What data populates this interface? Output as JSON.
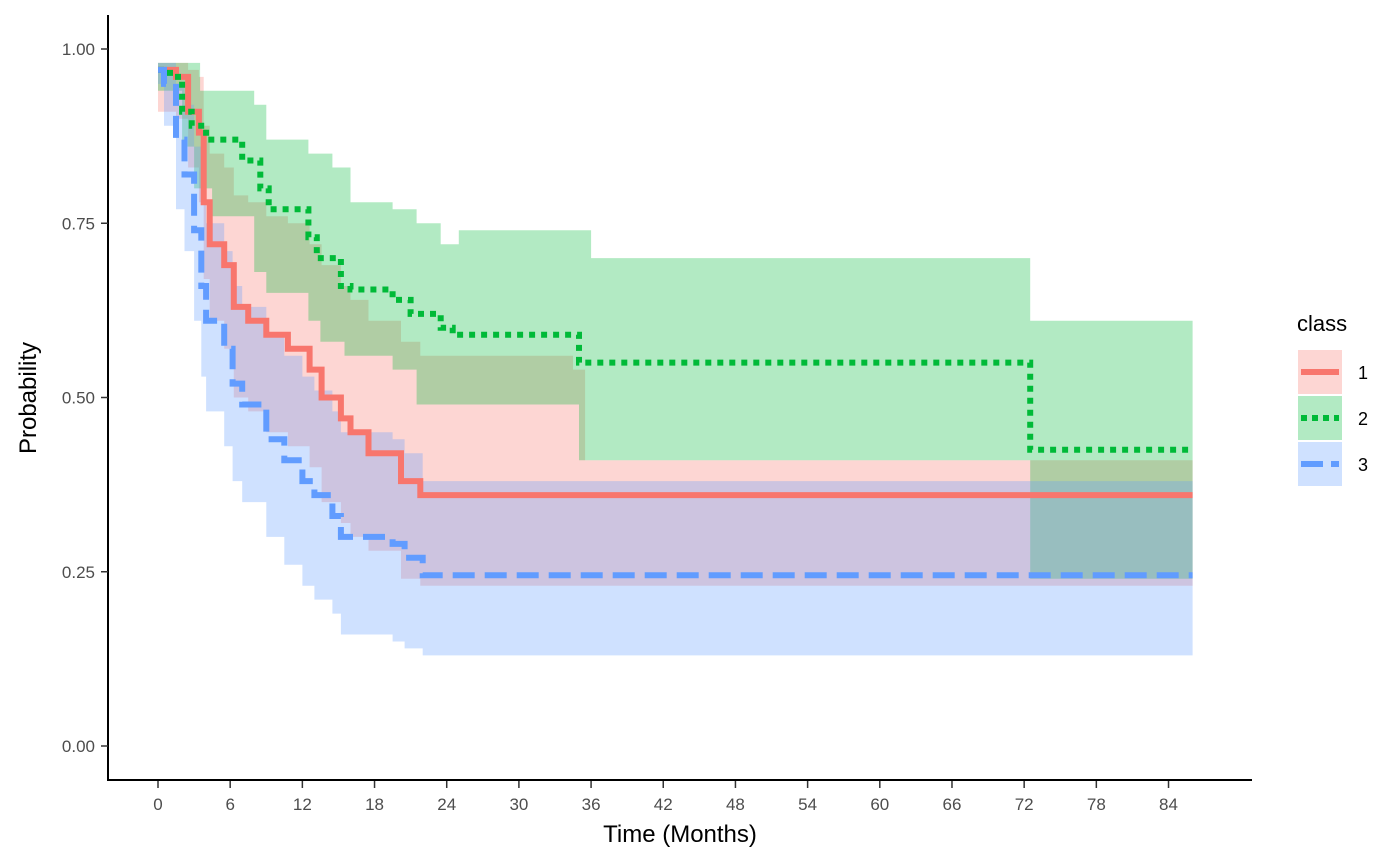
{
  "chart_data": {
    "type": "line",
    "subtype": "kaplan-meier survival curve with confidence bands",
    "xlabel": "Time (Months)",
    "ylabel": "Probability",
    "xlim": [
      -7,
      88
    ],
    "ylim": [
      -0.05,
      1.05
    ],
    "xticks": [
      0,
      6,
      12,
      18,
      24,
      30,
      36,
      42,
      48,
      54,
      60,
      66,
      72,
      78,
      84
    ],
    "yticks": [
      0,
      0.25,
      0.5,
      0.75,
      1.0
    ],
    "ytick_labels": [
      "0.00",
      "0.25",
      "0.50",
      "0.75",
      "1.00"
    ],
    "grid": false,
    "legend": {
      "title": "class",
      "position": "right"
    },
    "series": [
      {
        "name": "1",
        "color": "#F8766D",
        "line_style": "solid",
        "points": [
          [
            0,
            0.97
          ],
          [
            1.5,
            0.96
          ],
          [
            2.5,
            0.91
          ],
          [
            3.4,
            0.88
          ],
          [
            3.8,
            0.78
          ],
          [
            4.3,
            0.72
          ],
          [
            5.5,
            0.69
          ],
          [
            6.3,
            0.63
          ],
          [
            7.5,
            0.61
          ],
          [
            9,
            0.59
          ],
          [
            10.8,
            0.57
          ],
          [
            12.6,
            0.54
          ],
          [
            13.6,
            0.5
          ],
          [
            15.2,
            0.47
          ],
          [
            16,
            0.45
          ],
          [
            17.5,
            0.42
          ],
          [
            20.2,
            0.38
          ],
          [
            21.8,
            0.36
          ],
          [
            86,
            0.36
          ]
        ],
        "upper": [
          [
            0,
            0.98
          ],
          [
            1.5,
            0.98
          ],
          [
            2.5,
            0.97
          ],
          [
            3.4,
            0.96
          ],
          [
            3.8,
            0.89
          ],
          [
            4.3,
            0.85
          ],
          [
            5.5,
            0.83
          ],
          [
            6.3,
            0.79
          ],
          [
            7.5,
            0.78
          ],
          [
            9,
            0.76
          ],
          [
            10.8,
            0.75
          ],
          [
            12.6,
            0.72
          ],
          [
            13.6,
            0.69
          ],
          [
            15.2,
            0.66
          ],
          [
            16,
            0.64
          ],
          [
            17.5,
            0.61
          ],
          [
            20.2,
            0.58
          ],
          [
            21.8,
            0.56
          ],
          [
            34.5,
            0.54
          ],
          [
            35.5,
            0.41
          ],
          [
            86,
            0.41
          ]
        ],
        "lower": [
          [
            0,
            0.91
          ],
          [
            1.5,
            0.9
          ],
          [
            2.5,
            0.83
          ],
          [
            3.4,
            0.78
          ],
          [
            3.8,
            0.67
          ],
          [
            4.3,
            0.61
          ],
          [
            5.5,
            0.57
          ],
          [
            6.3,
            0.5
          ],
          [
            7.5,
            0.48
          ],
          [
            9,
            0.45
          ],
          [
            10.8,
            0.43
          ],
          [
            12.6,
            0.4
          ],
          [
            13.6,
            0.35
          ],
          [
            15.2,
            0.32
          ],
          [
            16,
            0.3
          ],
          [
            17.5,
            0.28
          ],
          [
            20.2,
            0.24
          ],
          [
            21.8,
            0.23
          ],
          [
            86,
            0.21
          ]
        ]
      },
      {
        "name": "2",
        "color": "#00BA38",
        "line_style": "dotted",
        "points": [
          [
            0,
            0.97
          ],
          [
            1,
            0.96
          ],
          [
            2,
            0.91
          ],
          [
            2.8,
            0.89
          ],
          [
            4,
            0.87
          ],
          [
            7,
            0.84
          ],
          [
            8.5,
            0.8
          ],
          [
            9.2,
            0.77
          ],
          [
            12.5,
            0.73
          ],
          [
            13.2,
            0.7
          ],
          [
            15.2,
            0.66
          ],
          [
            16,
            0.655
          ],
          [
            19.5,
            0.64
          ],
          [
            21,
            0.62
          ],
          [
            23.5,
            0.6
          ],
          [
            24.5,
            0.59
          ],
          [
            35,
            0.55
          ],
          [
            72.5,
            0.425
          ],
          [
            86,
            0.425
          ]
        ],
        "upper": [
          [
            0,
            0.98
          ],
          [
            2,
            0.98
          ],
          [
            3.5,
            0.94
          ],
          [
            8,
            0.92
          ],
          [
            9,
            0.87
          ],
          [
            12.5,
            0.85
          ],
          [
            14.5,
            0.83
          ],
          [
            16,
            0.78
          ],
          [
            19.5,
            0.77
          ],
          [
            21.5,
            0.75
          ],
          [
            23.5,
            0.72
          ],
          [
            25,
            0.74
          ],
          [
            34,
            0.74
          ],
          [
            36,
            0.7
          ],
          [
            70,
            0.7
          ],
          [
            72.5,
            0.61
          ],
          [
            86,
            0.61
          ]
        ],
        "lower": [
          [
            0,
            0.94
          ],
          [
            2,
            0.86
          ],
          [
            3,
            0.8
          ],
          [
            4.5,
            0.76
          ],
          [
            8,
            0.68
          ],
          [
            9,
            0.65
          ],
          [
            12.5,
            0.61
          ],
          [
            13.5,
            0.58
          ],
          [
            15.5,
            0.56
          ],
          [
            19.5,
            0.54
          ],
          [
            21.5,
            0.49
          ],
          [
            35,
            0.41
          ],
          [
            70,
            0.41
          ],
          [
            72.5,
            0.24
          ],
          [
            86,
            0.24
          ]
        ]
      },
      {
        "name": "3",
        "color": "#619CFF",
        "line_style": "dashed",
        "points": [
          [
            0,
            0.97
          ],
          [
            0.5,
            0.95
          ],
          [
            1.5,
            0.87
          ],
          [
            2.2,
            0.82
          ],
          [
            3,
            0.74
          ],
          [
            3.6,
            0.66
          ],
          [
            4,
            0.61
          ],
          [
            5.5,
            0.57
          ],
          [
            6.2,
            0.52
          ],
          [
            7,
            0.49
          ],
          [
            9,
            0.44
          ],
          [
            10.5,
            0.41
          ],
          [
            12,
            0.38
          ],
          [
            13,
            0.36
          ],
          [
            14.5,
            0.33
          ],
          [
            15.2,
            0.3
          ],
          [
            19.5,
            0.29
          ],
          [
            20.5,
            0.27
          ],
          [
            22,
            0.245
          ],
          [
            86,
            0.245
          ]
        ],
        "upper": [
          [
            0,
            0.98
          ],
          [
            0.5,
            0.98
          ],
          [
            1.5,
            0.95
          ],
          [
            2.2,
            0.92
          ],
          [
            3,
            0.86
          ],
          [
            3.6,
            0.8
          ],
          [
            4,
            0.75
          ],
          [
            5.5,
            0.71
          ],
          [
            6.2,
            0.66
          ],
          [
            7,
            0.63
          ],
          [
            9,
            0.59
          ],
          [
            10.5,
            0.56
          ],
          [
            12,
            0.53
          ],
          [
            13,
            0.51
          ],
          [
            14.5,
            0.48
          ],
          [
            15.2,
            0.45
          ],
          [
            19.5,
            0.44
          ],
          [
            20.5,
            0.42
          ],
          [
            22,
            0.38
          ],
          [
            86,
            0.36
          ]
        ],
        "lower": [
          [
            0,
            0.95
          ],
          [
            0.5,
            0.89
          ],
          [
            1.5,
            0.77
          ],
          [
            2.2,
            0.71
          ],
          [
            3,
            0.61
          ],
          [
            3.6,
            0.53
          ],
          [
            4,
            0.48
          ],
          [
            5.5,
            0.43
          ],
          [
            6.2,
            0.38
          ],
          [
            7,
            0.35
          ],
          [
            9,
            0.3
          ],
          [
            10.5,
            0.26
          ],
          [
            12,
            0.23
          ],
          [
            13,
            0.21
          ],
          [
            14.5,
            0.19
          ],
          [
            15.2,
            0.16
          ],
          [
            19.5,
            0.15
          ],
          [
            20.5,
            0.14
          ],
          [
            22,
            0.13
          ],
          [
            86,
            0.13
          ]
        ]
      }
    ]
  }
}
